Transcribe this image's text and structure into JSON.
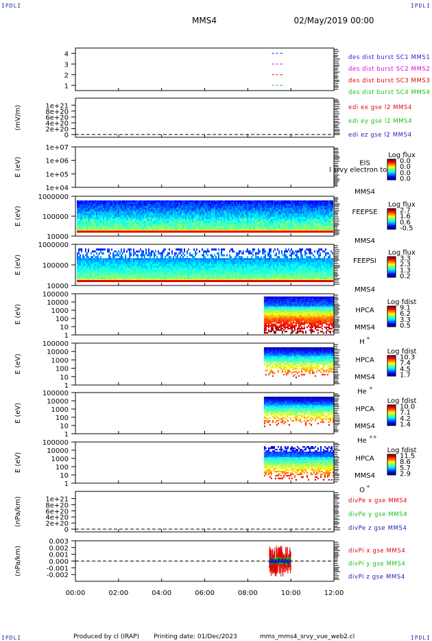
{
  "header": {
    "corner_tl": "IPDLI",
    "corner_tr": "IPDLI",
    "corner_bl": "IPDLI",
    "corner_br": "IPDLI",
    "spacecraft": "MMS4",
    "datetime": "02/May/2019 00:00"
  },
  "footer": {
    "produced": "Produced by cl (IRAP)",
    "printing": "Printing date: 01/Dec/2023",
    "script": "mms_mms4_srvy_vue_web2.cl"
  },
  "colors": {
    "red": "#e00000",
    "green": "#10c010",
    "blue": "#0a1ab0",
    "magenta": "#d000d0",
    "axis": "#000000"
  },
  "chart_data": [
    {
      "id": "burst",
      "type": "scatter",
      "ylim": [
        0.5,
        4.5
      ],
      "y_ticks": [
        "1",
        "2",
        "3",
        "4"
      ],
      "series": [
        {
          "name": "des dist burst SC1 MMS1",
          "color": "#1a1ae0",
          "y": 4,
          "segments": [
            [
              9.12,
              9.22
            ],
            [
              9.3,
              9.4
            ],
            [
              9.5,
              9.62
            ]
          ]
        },
        {
          "name": "des dist burst SC2 MMS2",
          "color": "#e000e0",
          "y": 3,
          "segments": [
            [
              9.12,
              9.22
            ],
            [
              9.3,
              9.4
            ],
            [
              9.5,
              9.62
            ]
          ]
        },
        {
          "name": "des dist burst SC3 MMS3",
          "color": "#e00000",
          "y": 2,
          "segments": [
            [
              9.12,
              9.22
            ],
            [
              9.3,
              9.4
            ],
            [
              9.5,
              9.62
            ]
          ]
        },
        {
          "name": "des dist burst SC4 MMS4",
          "color": "#10c010",
          "y": 1,
          "segments": [
            [
              9.12,
              9.22
            ],
            [
              9.3,
              9.4
            ],
            [
              9.5,
              9.62
            ]
          ]
        }
      ]
    },
    {
      "id": "edi",
      "type": "line",
      "ylabel": "(mV/m)",
      "ylim": [
        0,
        1.1e+21
      ],
      "y_ticks": [
        "1e+21",
        "8e+20",
        "6e+20",
        "4e+20",
        "2e+20",
        "0"
      ],
      "series": [
        {
          "name": "edi ex gse l2 MMS4",
          "color": "#e00000"
        },
        {
          "name": "edi ey gse l2 MMS4",
          "color": "#10c010"
        },
        {
          "name": "edi ez gse l2 MMS4",
          "color": "#1a1ab0"
        }
      ]
    },
    {
      "id": "eis",
      "type": "heatmap",
      "ylabel": "E (eV)",
      "scale": "log",
      "ylim": [
        10000,
        10000000
      ],
      "y_ticks": [
        "1e+07",
        "1e+06",
        "1e+05",
        "1e+04"
      ],
      "instrument": "EIS",
      "sc": "MMS4",
      "overlap_label": "l srvy electron to",
      "cbar_title": "Log flux",
      "cbar_ticks": [
        "0.0",
        "0.0",
        "0.0",
        "0.0"
      ]
    },
    {
      "id": "feepse",
      "type": "heatmap",
      "ylabel": "E (eV)",
      "scale": "log",
      "ylim": [
        10000,
        1000000
      ],
      "y_ticks": [
        "1000000",
        "100000",
        "10000"
      ],
      "instrument": "FEEPSE",
      "sc": "MMS4",
      "cbar_title": "Log flux",
      "cbar_ticks": [
        "2.7",
        "1.6",
        "0.6",
        "-0.5"
      ],
      "time_range": [
        0,
        12
      ]
    },
    {
      "id": "feepsi",
      "type": "heatmap",
      "ylabel": "E (eV)",
      "scale": "log",
      "ylim": [
        10000,
        1000000
      ],
      "y_ticks": [
        "1000000",
        "100000",
        "10000"
      ],
      "instrument": "FEEPSI",
      "sc": "MMS4",
      "cbar_title": "Log flux",
      "cbar_ticks": [
        "3.3",
        "2.3",
        "1.3",
        "0.2"
      ],
      "time_range": [
        0,
        12
      ]
    },
    {
      "id": "hpca_h",
      "type": "heatmap",
      "ylabel": "E (eV)",
      "scale": "log",
      "ylim": [
        1,
        30000
      ],
      "y_ticks": [
        "100000",
        "10000",
        "1000",
        "100",
        "10",
        "1"
      ],
      "instrument": "HPCA",
      "sc": "MMS4",
      "species": "H",
      "charge": "+",
      "cbar_title": "Log fdist",
      "cbar_ticks": [
        "9.1",
        "6.2",
        "3.3",
        "0.5"
      ],
      "time_range": [
        8.75,
        12
      ]
    },
    {
      "id": "hpca_he1",
      "type": "heatmap",
      "ylabel": "E (eV)",
      "scale": "log",
      "ylim": [
        1,
        100000
      ],
      "y_ticks": [
        "100000",
        "10000",
        "1000",
        "100",
        "10",
        "1"
      ],
      "instrument": "HPCA",
      "sc": "MMS4",
      "species": "He",
      "charge": "+",
      "cbar_title": "Log fdist",
      "cbar_ticks": [
        "10.3",
        "7.4",
        "4.5",
        "1.7"
      ],
      "time_range": [
        8.75,
        12
      ]
    },
    {
      "id": "hpca_he2",
      "type": "heatmap",
      "ylabel": "E (eV)",
      "scale": "log",
      "ylim": [
        1,
        100000
      ],
      "y_ticks": [
        "100000",
        "10000",
        "1000",
        "100",
        "10",
        "1"
      ],
      "instrument": "HPCA",
      "sc": "MMS4",
      "species": "He",
      "charge": "++",
      "cbar_title": "Log fdist",
      "cbar_ticks": [
        "10.0",
        "7.1",
        "4.2",
        "1.4"
      ],
      "time_range": [
        8.75,
        12
      ]
    },
    {
      "id": "hpca_o",
      "type": "heatmap",
      "ylabel": "E (eV)",
      "scale": "log",
      "ylim": [
        1,
        100000
      ],
      "y_ticks": [
        "100000",
        "10000",
        "1000",
        "100",
        "10",
        "1"
      ],
      "instrument": "HPCA",
      "sc": "MMS4",
      "species": "O",
      "charge": "+",
      "cbar_title": "Log fdist",
      "cbar_ticks": [
        "11.5",
        "8.6",
        "5.7",
        "2.9"
      ],
      "time_range": [
        8.75,
        12
      ]
    },
    {
      "id": "divpe",
      "type": "line",
      "ylabel": "(nPa/km)",
      "ylim": [
        0,
        1.1e+21
      ],
      "y_ticks": [
        "1e+21",
        "8e+20",
        "6e+20",
        "4e+20",
        "2e+20",
        "0"
      ],
      "series": [
        {
          "name": "divPe x gse MMS4",
          "color": "#e00000"
        },
        {
          "name": "divPe y gse MMS4",
          "color": "#10c010"
        },
        {
          "name": "divPe z gse MMS4",
          "color": "#1a1ab0"
        }
      ]
    },
    {
      "id": "divpi",
      "type": "line",
      "ylabel": "(nPa/km)",
      "ylim": [
        -0.003,
        0.003
      ],
      "y_ticks": [
        "0.003",
        "0.002",
        "0.001",
        "0.000",
        "-0.001",
        "-0.002"
      ],
      "time_range": [
        9.0,
        10.0
      ],
      "series": [
        {
          "name": "divPi x gse MMS4",
          "color": "#e00000",
          "amplitude": 0.0023
        },
        {
          "name": "divPi y gse MMS4",
          "color": "#10c010",
          "amplitude": 0.0006
        },
        {
          "name": "divPi z gse MMS4",
          "color": "#1a1ab0",
          "amplitude": 0.0004
        }
      ]
    }
  ],
  "x_axis": {
    "range": [
      0,
      12
    ],
    "ticks": [
      "00:00",
      "02:00",
      "04:00",
      "06:00",
      "08:00",
      "10:00",
      "12:00"
    ]
  }
}
